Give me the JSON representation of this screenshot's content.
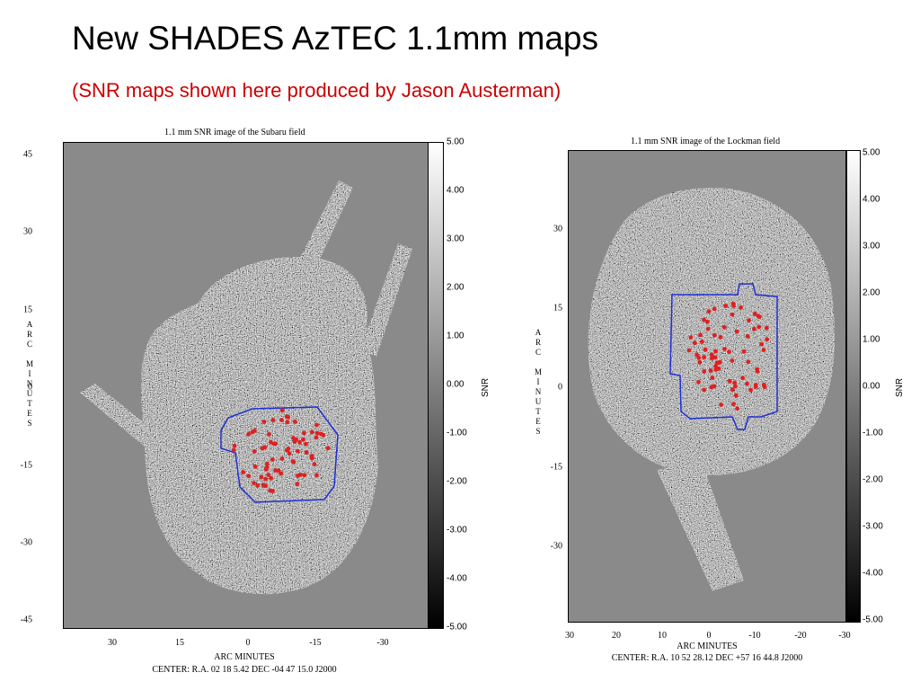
{
  "slide": {
    "title": "New SHADES AzTEC 1.1mm maps",
    "subtitle": "(SNR maps shown here produced by Jason Austerman)"
  },
  "left_map": {
    "title": "1.1 mm SNR image of the Subaru field",
    "y_ticks": [
      "45",
      "30",
      "15",
      "0",
      "-15",
      "-30",
      "-45"
    ],
    "x_ticks": [
      "30",
      "15",
      "0",
      "-15",
      "-30"
    ],
    "y_axis_label": [
      "A",
      "R",
      "C",
      "",
      "M",
      "I",
      "N",
      "U",
      "T",
      "E",
      "S"
    ],
    "x_axis_label": "ARC MINUTES",
    "center": "CENTER: R.A. 02 18  5.42   DEC -04 47 15.0  J2000",
    "colorbar_ticks": [
      "5.00",
      "4.00",
      "3.00",
      "2.00",
      "1.00",
      "0.00",
      "-1.00",
      "-2.00",
      "-3.00",
      "-4.00",
      "-5.00"
    ],
    "colorbar_label": "SNR"
  },
  "right_map": {
    "title": "1.1 mm SNR image of the Lockman field",
    "y_ticks": [
      "30",
      "15",
      "0",
      "-15",
      "-30"
    ],
    "x_ticks": [
      "30",
      "20",
      "10",
      "0",
      "-10",
      "-20",
      "-30"
    ],
    "y_axis_label": [
      "A",
      "R",
      "C",
      "",
      "M",
      "I",
      "N",
      "U",
      "T",
      "E",
      "S"
    ],
    "x_axis_label": "ARC MINUTES",
    "center": "CENTER: R.A. 10 52 28.12   DEC +57 16 44.8  J2000",
    "colorbar_ticks": [
      "5.00",
      "4.00",
      "3.00",
      "2.00",
      "1.00",
      "0.00",
      "-1.00",
      "-2.00",
      "-3.00",
      "-4.00",
      "-5.00"
    ],
    "colorbar_label": "SNR"
  },
  "colors": {
    "subtitle": "#cc0000",
    "background_map": "#8a8a8a",
    "region_outline": "#1f2fd6",
    "sources": "#e02020"
  }
}
